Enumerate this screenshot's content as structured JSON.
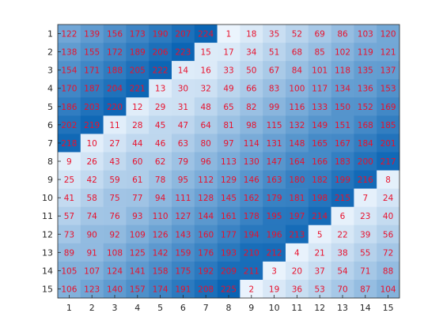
{
  "chart_data": {
    "type": "heatmap",
    "title": "",
    "xlabel": "",
    "ylabel": "",
    "x_labels": [
      "1",
      "2",
      "3",
      "4",
      "5",
      "6",
      "7",
      "8",
      "9",
      "10",
      "11",
      "12",
      "13",
      "14",
      "15"
    ],
    "y_labels": [
      "1",
      "2",
      "3",
      "4",
      "5",
      "6",
      "7",
      "8",
      "9",
      "10",
      "11",
      "12",
      "13",
      "14",
      "15"
    ],
    "value_range": [
      1,
      225
    ],
    "colormap": {
      "low": "#ebf4fd",
      "high": "#0a64b4"
    },
    "label_color": "#e8112d",
    "grid": false,
    "values": [
      [
        122,
        139,
        156,
        173,
        190,
        207,
        224,
        1,
        18,
        35,
        52,
        69,
        86,
        103,
        120
      ],
      [
        138,
        155,
        172,
        189,
        206,
        223,
        15,
        17,
        34,
        51,
        68,
        85,
        102,
        119,
        121
      ],
      [
        154,
        171,
        188,
        205,
        222,
        14,
        16,
        33,
        50,
        67,
        84,
        101,
        118,
        135,
        137
      ],
      [
        170,
        187,
        204,
        221,
        13,
        30,
        32,
        49,
        66,
        83,
        100,
        117,
        134,
        136,
        153
      ],
      [
        186,
        203,
        220,
        12,
        29,
        31,
        48,
        65,
        82,
        99,
        116,
        133,
        150,
        152,
        169
      ],
      [
        202,
        219,
        11,
        28,
        45,
        47,
        64,
        81,
        98,
        115,
        132,
        149,
        151,
        168,
        185
      ],
      [
        218,
        10,
        27,
        44,
        46,
        63,
        80,
        97,
        114,
        131,
        148,
        165,
        167,
        184,
        201
      ],
      [
        9,
        26,
        43,
        60,
        62,
        79,
        96,
        113,
        130,
        147,
        164,
        166,
        183,
        200,
        217
      ],
      [
        25,
        42,
        59,
        61,
        78,
        95,
        112,
        129,
        146,
        163,
        180,
        182,
        199,
        216,
        8
      ],
      [
        41,
        58,
        75,
        77,
        94,
        111,
        128,
        145,
        162,
        179,
        181,
        198,
        215,
        7,
        24
      ],
      [
        57,
        74,
        76,
        93,
        110,
        127,
        144,
        161,
        178,
        195,
        197,
        214,
        6,
        23,
        40
      ],
      [
        73,
        90,
        92,
        109,
        126,
        143,
        160,
        177,
        194,
        196,
        213,
        5,
        22,
        39,
        56
      ],
      [
        89,
        91,
        108,
        125,
        142,
        159,
        176,
        193,
        210,
        212,
        4,
        21,
        38,
        55,
        72
      ],
      [
        105,
        107,
        124,
        141,
        158,
        175,
        192,
        209,
        211,
        3,
        20,
        37,
        54,
        71,
        88
      ],
      [
        106,
        123,
        140,
        157,
        174,
        191,
        208,
        225,
        2,
        19,
        36,
        53,
        70,
        87,
        104
      ]
    ]
  }
}
